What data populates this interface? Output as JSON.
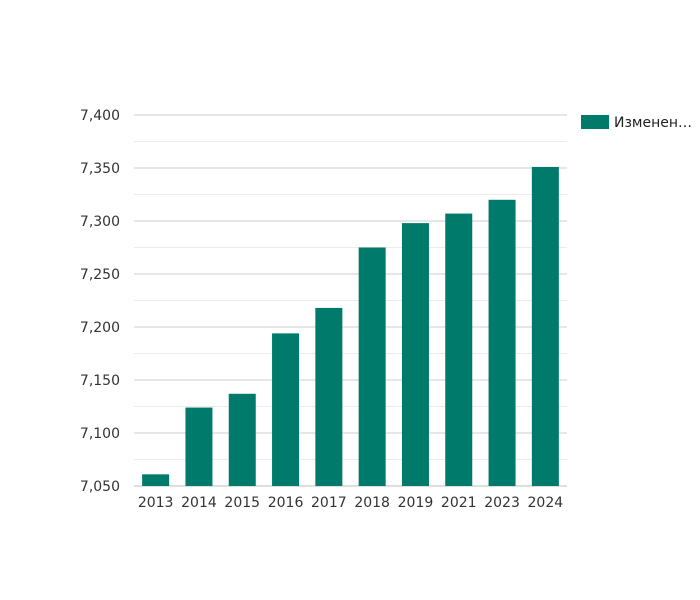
{
  "chart_data": {
    "type": "bar",
    "categories": [
      "2013",
      "2014",
      "2015",
      "2016",
      "2017",
      "2018",
      "2019",
      "2021",
      "2023",
      "2024"
    ],
    "series": [
      {
        "name": "Изменен…",
        "color": "#007a6a",
        "values": [
          7061,
          7124,
          7137,
          7194,
          7218,
          7275,
          7298,
          7307,
          7320,
          7351
        ]
      }
    ],
    "ylim": [
      7050,
      7400
    ],
    "yticks": [
      "7,050",
      "7,100",
      "7,150",
      "7,200",
      "7,250",
      "7,300",
      "7,350",
      "7,400"
    ],
    "ytick_values": [
      7050,
      7100,
      7150,
      7200,
      7250,
      7300,
      7350,
      7400
    ],
    "grid": true,
    "legend_position": "top-right",
    "title": "",
    "xlabel": "",
    "ylabel": ""
  }
}
